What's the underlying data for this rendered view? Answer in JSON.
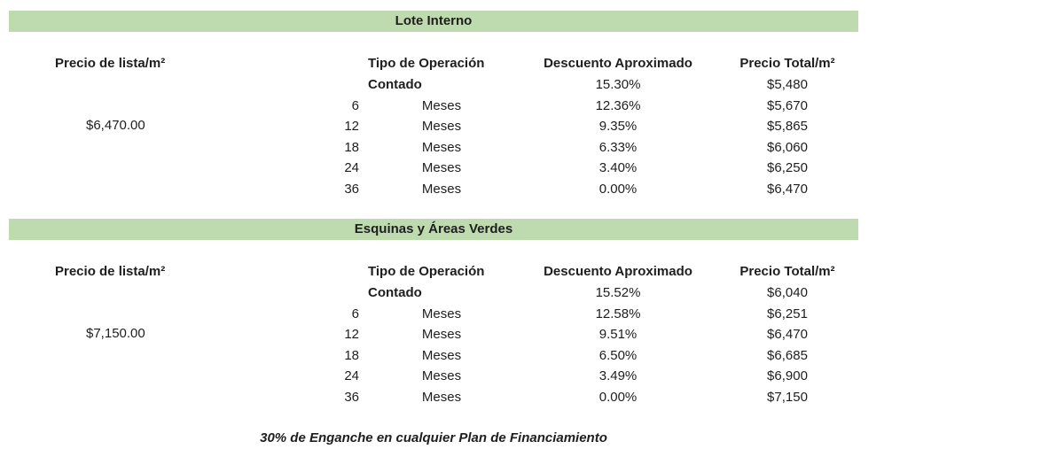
{
  "sections": [
    {
      "title": "Lote Interno",
      "list_price_label": "Precio de lista/m²",
      "list_price": "$6,470.00",
      "headers": [
        "Tipo de Operación",
        "Descuento Aproximado",
        "Precio Total/m²"
      ],
      "rows": [
        {
          "operation": "Contado",
          "discount": "15.30%",
          "total": "$5,480"
        },
        {
          "term": "6",
          "unit": "Meses",
          "discount": "12.36%",
          "total": "$5,670"
        },
        {
          "term": "12",
          "unit": "Meses",
          "discount": "9.35%",
          "total": "$5,865"
        },
        {
          "term": "18",
          "unit": "Meses",
          "discount": "6.33%",
          "total": "$6,060"
        },
        {
          "term": "24",
          "unit": "Meses",
          "discount": "3.40%",
          "total": "$6,250"
        },
        {
          "term": "36",
          "unit": "Meses",
          "discount": "0.00%",
          "total": "$6,470"
        }
      ]
    },
    {
      "title": "Esquinas y Áreas Verdes",
      "list_price_label": "Precio de lista/m²",
      "list_price": "$7,150.00",
      "headers": [
        "Tipo de Operación",
        "Descuento Aproximado",
        "Precio Total/m²"
      ],
      "rows": [
        {
          "operation": "Contado",
          "discount": "15.52%",
          "total": "$6,040"
        },
        {
          "term": "6",
          "unit": "Meses",
          "discount": "12.58%",
          "total": "$6,251"
        },
        {
          "term": "12",
          "unit": "Meses",
          "discount": "9.51%",
          "total": "$6,470"
        },
        {
          "term": "18",
          "unit": "Meses",
          "discount": "6.50%",
          "total": "$6,685"
        },
        {
          "term": "24",
          "unit": "Meses",
          "discount": "3.49%",
          "total": "$6,900"
        },
        {
          "term": "36",
          "unit": "Meses",
          "discount": "0.00%",
          "total": "$7,150"
        }
      ]
    }
  ],
  "footer": "30% de Enganche en cualquier Plan de Financiamiento"
}
